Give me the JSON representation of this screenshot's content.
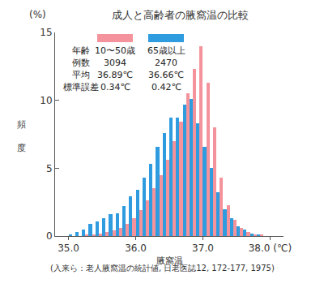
{
  "chart_data": {
    "type": "histogram",
    "title": "成人と高齢者の腋窩温の比較",
    "xlabel": "腋窩温",
    "ylabel": "頻度",
    "y_unit": "(%)",
    "source": "(入来ら：老人腋窩温の統計値, 日老医誌12, 172-177, 1975)",
    "bins": [
      35.0,
      35.1,
      35.2,
      35.3,
      35.4,
      35.5,
      35.6,
      35.7,
      35.8,
      35.9,
      36.0,
      36.1,
      36.2,
      36.3,
      36.4,
      36.5,
      36.6,
      36.7,
      36.8,
      36.9,
      37.0,
      37.1,
      37.2,
      37.3,
      37.4,
      37.5,
      37.6,
      37.7,
      37.8,
      37.9,
      38.0
    ],
    "series": [
      {
        "name": "10〜50歳",
        "color": "#f4939c",
        "values": [
          0,
          0,
          0.1,
          0.1,
          0.2,
          0.3,
          0.4,
          0.6,
          0.9,
          1.3,
          1.9,
          2.6,
          3.5,
          4.5,
          5.6,
          7.0,
          8.4,
          10.5,
          12.3,
          14.0,
          11.3,
          8.0,
          4.3,
          2.3,
          1.2,
          0.6,
          0.3,
          0.1,
          0.1,
          0
        ]
      },
      {
        "name": "65歳以上",
        "color": "#2f9ce0",
        "values": [
          0.1,
          0.3,
          0.5,
          0.9,
          1.1,
          1.3,
          1.6,
          1.7,
          2.2,
          2.9,
          3.4,
          4.3,
          5.3,
          6.6,
          7.6,
          8.7,
          8.7,
          9.7,
          10.1,
          8.3,
          6.6,
          5.0,
          3.2,
          2.0,
          1.3,
          0.7,
          0.5,
          0.2,
          0.1,
          0
        ]
      }
    ],
    "stats": {
      "label": "年齢",
      "rows": [
        {
          "label": "例数",
          "values": [
            3094,
            2470
          ]
        },
        {
          "label": "平均",
          "values": [
            {
              "value": 36.89,
              "label": "36.89℃"
            },
            {
              "value": 36.66,
              "label": "36.66℃"
            }
          ]
        },
        {
          "label": "標準誤差",
          "values": [
            {
              "value": 0.34,
              "label": "0.34℃"
            },
            {
              "value": 0.42,
              "label": "0.42℃"
            }
          ]
        }
      ]
    },
    "xlim": [
      34.8,
      38.2
    ],
    "xticks": [
      {
        "value": 35,
        "label": "35.0"
      },
      {
        "value": 36,
        "label": "36.0"
      },
      {
        "value": 37,
        "label": "37.0"
      },
      {
        "value": 38,
        "label": "38.0 (℃)"
      }
    ],
    "ylim": [
      0,
      15
    ],
    "yticks": [
      0,
      5,
      10,
      15
    ],
    "grid": false
  }
}
